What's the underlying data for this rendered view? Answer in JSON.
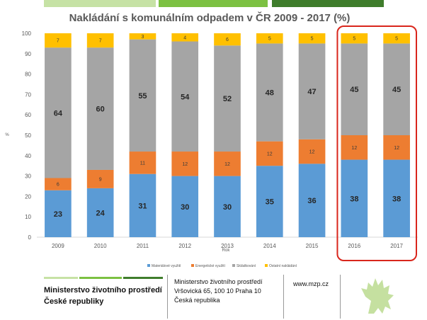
{
  "chart_data": {
    "type": "bar",
    "stacked": true,
    "title": "Nakládání s komunálním odpadem v ČR 2009 - 2017 (%)",
    "xlabel": "Rok",
    "ylabel": "%",
    "ylim": [
      0,
      100
    ],
    "yticks": [
      0,
      10,
      20,
      30,
      40,
      50,
      60,
      70,
      80,
      90,
      100
    ],
    "grid": false,
    "legend_position": "bottom",
    "categories": [
      "2009",
      "2010",
      "2011",
      "2012",
      "2013",
      "2014",
      "2015",
      "2016",
      "2017"
    ],
    "series": [
      {
        "name": "Materiálové využití",
        "color": "#5b9bd5",
        "values": [
          23,
          24,
          31,
          30,
          30,
          35,
          36,
          38,
          38
        ]
      },
      {
        "name": "Energetické využití",
        "color": "#ed7d31",
        "values": [
          6,
          9,
          11,
          12,
          12,
          12,
          12,
          12,
          12
        ]
      },
      {
        "name": "Skládkování",
        "color": "#a5a5a5",
        "values": [
          64,
          60,
          55,
          54,
          52,
          48,
          47,
          45,
          45
        ]
      },
      {
        "name": "Ostatní nakládání",
        "color": "#ffc000",
        "values": [
          7,
          7,
          3,
          4,
          6,
          5,
          5,
          5,
          5
        ]
      }
    ],
    "highlighted_categories": [
      "2016",
      "2017"
    ],
    "highlight_color": "#d9261c"
  },
  "footer": {
    "ministry_line1": "Ministerstvo životního prostředí",
    "ministry_line2": "České republiky",
    "address_line1": "Ministerstvo životního prostředí",
    "address_line2": "Vršovická 65, 100 10  Praha 10",
    "address_line3": "Česká republika",
    "website": "www.mzp.cz",
    "logo_icon": "czech-lion-emblem-icon",
    "accent_color": "#7cc142",
    "emblem_color": "#c5e0a0"
  }
}
